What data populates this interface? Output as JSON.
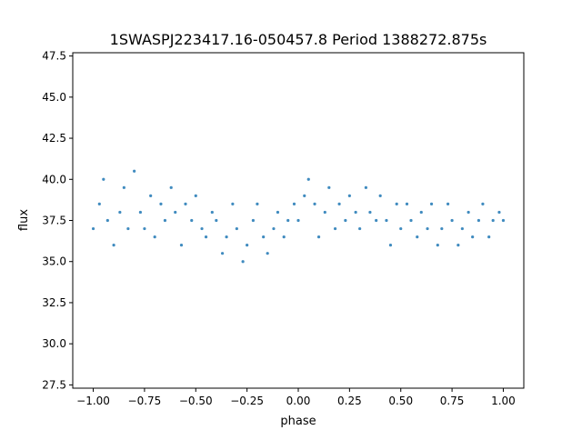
{
  "chart_data": {
    "type": "scatter",
    "title": "1SWASPJ223417.16-050457.8 Period 1388272.875s",
    "xlabel": "phase",
    "ylabel": "flux",
    "xlim": [
      -1.1,
      1.1
    ],
    "ylim": [
      27.3,
      47.7
    ],
    "x_ticks": [
      -1.0,
      -0.75,
      -0.5,
      -0.25,
      0.0,
      0.25,
      0.5,
      0.75,
      1.0
    ],
    "x_tick_labels": [
      "−1.00",
      "−0.75",
      "−0.50",
      "−0.25",
      "0.00",
      "0.25",
      "0.50",
      "0.75",
      "1.00"
    ],
    "y_ticks": [
      27.5,
      30.0,
      32.5,
      35.0,
      37.5,
      40.0,
      42.5,
      45.0,
      47.5
    ],
    "y_tick_labels": [
      "27.5",
      "30.0",
      "32.5",
      "35.0",
      "37.5",
      "40.0",
      "42.5",
      "45.0",
      "47.5"
    ],
    "grid": false,
    "marker_color": "#1f77b4",
    "series": [
      {
        "x": [
          -1.0,
          -0.97,
          -0.95,
          -0.93,
          -0.9,
          -0.87,
          -0.85,
          -0.83,
          -0.8,
          -0.77,
          -0.75,
          -0.72,
          -0.7,
          -0.67,
          -0.65,
          -0.62,
          -0.6,
          -0.57,
          -0.55,
          -0.52,
          -0.5,
          -0.47,
          -0.45,
          -0.42,
          -0.4,
          -0.37,
          -0.35,
          -0.32,
          -0.3,
          -0.27,
          -0.25,
          -0.22,
          -0.2,
          -0.17,
          -0.15,
          -0.12,
          -0.1,
          -0.07,
          -0.05,
          -0.02,
          0.0,
          0.03,
          0.05,
          0.08,
          0.1,
          0.13,
          0.15,
          0.18,
          0.2,
          0.23,
          0.25,
          0.28,
          0.3,
          0.33,
          0.35,
          0.38,
          0.4,
          0.43,
          0.45,
          0.48,
          0.5,
          0.53,
          0.55,
          0.58,
          0.6,
          0.63,
          0.65,
          0.68,
          0.7,
          0.73,
          0.75,
          0.78,
          0.8,
          0.83,
          0.85,
          0.88,
          0.9,
          0.93,
          0.95,
          0.98,
          1.0
        ],
        "y": [
          37.0,
          38.5,
          40.0,
          37.5,
          36.0,
          38.0,
          39.5,
          37.0,
          40.5,
          38.0,
          37.0,
          39.0,
          36.5,
          38.5,
          37.5,
          39.5,
          38.0,
          36.0,
          38.5,
          37.5,
          39.0,
          37.0,
          36.5,
          38.0,
          37.5,
          35.5,
          36.5,
          38.5,
          37.0,
          35.0,
          36.0,
          37.5,
          38.5,
          36.5,
          35.5,
          37.0,
          38.0,
          36.5,
          37.5,
          38.5,
          37.5,
          39.0,
          40.0,
          38.5,
          36.5,
          38.0,
          39.5,
          37.0,
          38.5,
          37.5,
          39.0,
          38.0,
          37.0,
          39.5,
          38.0,
          37.5,
          39.0,
          37.5,
          36.0,
          38.5,
          37.0,
          38.5,
          37.5,
          36.5,
          38.0,
          37.0,
          38.5,
          36.0,
          37.0,
          38.5,
          37.5,
          36.0,
          37.0,
          38.0,
          36.5,
          37.5,
          38.5,
          36.5,
          37.5,
          38.0,
          37.5
        ]
      }
    ]
  }
}
